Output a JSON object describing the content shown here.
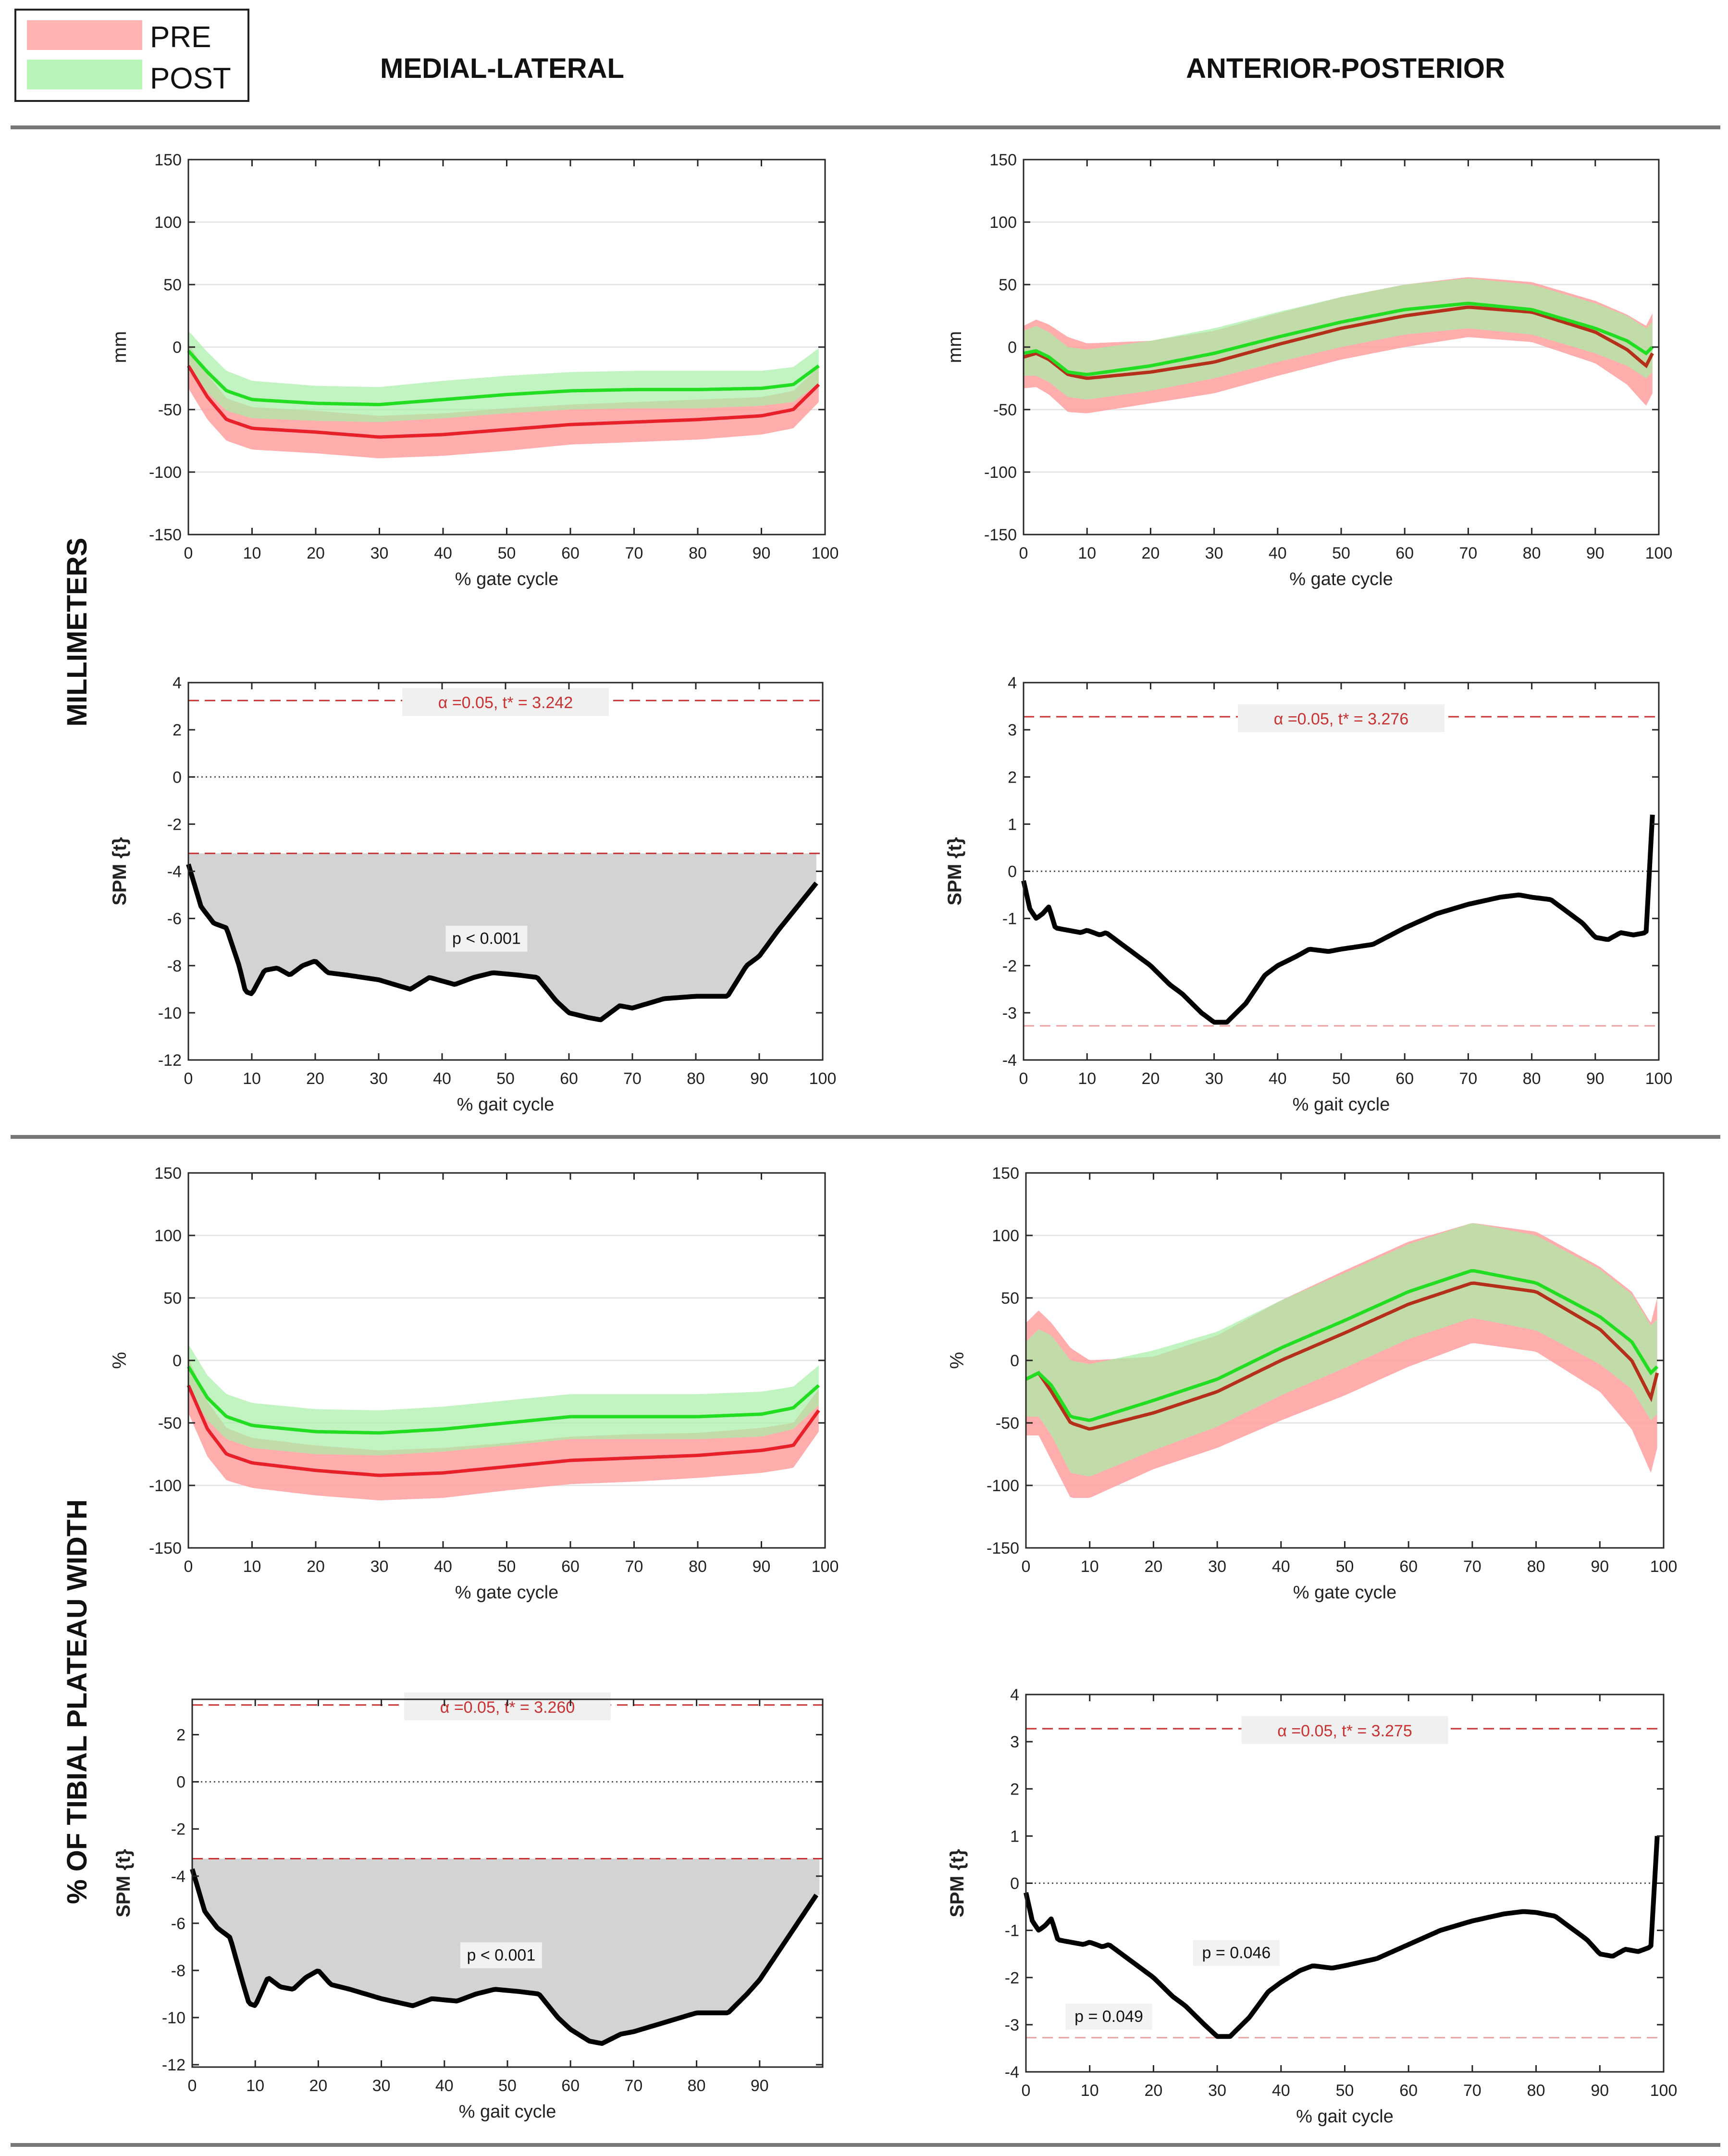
{
  "legend": {
    "entries": [
      {
        "label": "PRE",
        "color": "#ffb3b3"
      },
      {
        "label": "POST",
        "color": "#b9f5b9"
      }
    ]
  },
  "column_headers": [
    "MEDIAL-LATERAL",
    "ANTERIOR-POSTERIOR"
  ],
  "row_headers": [
    "MILLIMETERS",
    "% OF TIBIAL PLATEAU WIDTH"
  ],
  "colors": {
    "pre_line": "#e8202a",
    "pre_line_ap": "#b5301b",
    "pre_band": "#ff9f9f",
    "post_line": "#22dd22",
    "post_band": "#a6f0a6",
    "overlap_band": "#a6b06a",
    "spm_line": "#000000",
    "threshold": "#c83232",
    "cluster": "#d3d3d3"
  },
  "chart_data": [
    {
      "id": "ml-mm",
      "type": "line",
      "xlabel": "% gate cycle",
      "ylabel": "mm",
      "xlim": [
        0,
        100
      ],
      "ylim": [
        -150,
        150
      ],
      "xticks": [
        "0",
        "10",
        "20",
        "30",
        "40",
        "50",
        "60",
        "70",
        "80",
        "90",
        "100"
      ],
      "yticks": [
        "150",
        "100",
        "50",
        "0",
        "-50",
        "-100",
        "-150"
      ],
      "x": [
        0,
        3,
        6,
        10,
        20,
        30,
        40,
        50,
        60,
        70,
        80,
        90,
        95,
        99
      ],
      "series": [
        {
          "name": "PRE",
          "mean": [
            -15,
            -40,
            -58,
            -65,
            -68,
            -72,
            -70,
            -66,
            -62,
            -60,
            -58,
            -55,
            -50,
            -30
          ],
          "sd": [
            18,
            18,
            17,
            17,
            17,
            17,
            17,
            17,
            16,
            16,
            16,
            15,
            15,
            14
          ]
        },
        {
          "name": "POST",
          "mean": [
            -3,
            -20,
            -35,
            -42,
            -45,
            -46,
            -42,
            -38,
            -35,
            -34,
            -34,
            -33,
            -30,
            -15
          ],
          "sd": [
            16,
            16,
            16,
            15,
            14,
            14,
            15,
            15,
            15,
            15,
            15,
            14,
            14,
            14
          ]
        }
      ]
    },
    {
      "id": "ap-mm",
      "type": "line",
      "xlabel": "% gate cycle",
      "ylabel": "mm",
      "xlim": [
        0,
        100
      ],
      "ylim": [
        -150,
        150
      ],
      "xticks": [
        "0",
        "10",
        "20",
        "30",
        "40",
        "50",
        "60",
        "70",
        "80",
        "90",
        "100"
      ],
      "yticks": [
        "150",
        "100",
        "50",
        "0",
        "-50",
        "-100",
        "-150"
      ],
      "x": [
        0,
        2,
        4,
        7,
        10,
        20,
        30,
        40,
        50,
        60,
        70,
        80,
        90,
        95,
        98,
        99
      ],
      "series": [
        {
          "name": "PRE",
          "mean": [
            -8,
            -5,
            -10,
            -22,
            -25,
            -20,
            -12,
            2,
            15,
            25,
            32,
            28,
            12,
            -2,
            -15,
            -5
          ],
          "sd": [
            25,
            27,
            28,
            30,
            28,
            25,
            25,
            25,
            25,
            25,
            24,
            24,
            25,
            28,
            32,
            32
          ]
        },
        {
          "name": "POST",
          "mean": [
            -5,
            -3,
            -8,
            -20,
            -22,
            -15,
            -5,
            8,
            20,
            30,
            35,
            30,
            15,
            5,
            -5,
            0
          ],
          "sd": [
            18,
            20,
            20,
            20,
            20,
            20,
            20,
            20,
            20,
            20,
            20,
            20,
            20,
            20,
            20,
            20
          ]
        }
      ]
    },
    {
      "id": "ml-mm-spm",
      "type": "line",
      "xlabel": "% gait cycle",
      "ylabel": "SPM {t}",
      "xlim": [
        0,
        100
      ],
      "ylim": [
        -12,
        4
      ],
      "xticks": [
        "0",
        "10",
        "20",
        "30",
        "40",
        "50",
        "60",
        "70",
        "80",
        "90",
        "100"
      ],
      "yticks": [
        "4",
        "2",
        "0",
        "-2",
        "-4",
        "-6",
        "-8",
        "-10",
        "-12"
      ],
      "threshold": 3.242,
      "threshold_label": "α =0.05,     t* = 3.242",
      "clusters": [
        {
          "range": [
            0,
            99
          ],
          "side": "lower",
          "label": "p < 0.001",
          "label_at": [
            47,
            -7
          ]
        }
      ],
      "x": [
        0,
        2,
        4,
        6,
        8,
        9,
        10,
        12,
        14,
        16,
        18,
        20,
        22,
        25,
        30,
        35,
        38,
        42,
        45,
        48,
        52,
        55,
        58,
        60,
        63,
        65,
        68,
        70,
        75,
        80,
        85,
        88,
        90,
        93,
        96,
        99
      ],
      "values": [
        -3.7,
        -5.5,
        -6.2,
        -6.4,
        -8.0,
        -9.1,
        -9.2,
        -8.2,
        -8.1,
        -8.4,
        -8.0,
        -7.8,
        -8.3,
        -8.4,
        -8.6,
        -9.0,
        -8.5,
        -8.8,
        -8.5,
        -8.3,
        -8.4,
        -8.5,
        -9.5,
        -10.0,
        -10.2,
        -10.3,
        -9.7,
        -9.8,
        -9.4,
        -9.3,
        -9.3,
        -8.0,
        -7.6,
        -6.5,
        -5.5,
        -4.5
      ]
    },
    {
      "id": "ap-mm-spm",
      "type": "line",
      "xlabel": "% gait cycle",
      "ylabel": "SPM {t}",
      "xlim": [
        0,
        100
      ],
      "ylim": [
        -4,
        4
      ],
      "xticks": [
        "0",
        "10",
        "20",
        "30",
        "40",
        "50",
        "60",
        "70",
        "80",
        "90",
        "100"
      ],
      "yticks": [
        "4",
        "3",
        "2",
        "1",
        "0",
        "-1",
        "-2",
        "-3",
        "-4"
      ],
      "threshold": 3.276,
      "threshold_label": "α =0.05,     t* = 3.276",
      "clusters": [],
      "x": [
        0,
        1,
        2,
        3,
        4,
        5,
        7,
        9,
        10,
        12,
        13,
        15,
        18,
        20,
        23,
        25,
        28,
        30,
        32,
        35,
        38,
        40,
        43,
        45,
        48,
        50,
        55,
        60,
        65,
        70,
        75,
        78,
        80,
        83,
        85,
        88,
        90,
        92,
        94,
        96,
        98,
        99
      ],
      "values": [
        -0.2,
        -0.8,
        -1.0,
        -0.9,
        -0.75,
        -1.2,
        -1.25,
        -1.3,
        -1.25,
        -1.35,
        -1.3,
        -1.5,
        -1.8,
        -2.0,
        -2.4,
        -2.6,
        -3.0,
        -3.2,
        -3.2,
        -2.8,
        -2.2,
        -2.0,
        -1.8,
        -1.65,
        -1.7,
        -1.65,
        -1.55,
        -1.2,
        -0.9,
        -0.7,
        -0.55,
        -0.5,
        -0.55,
        -0.6,
        -0.8,
        -1.1,
        -1.4,
        -1.45,
        -1.3,
        -1.35,
        -1.3,
        1.2
      ]
    },
    {
      "id": "ml-pct",
      "type": "line",
      "xlabel": "% gate cycle",
      "ylabel": "%",
      "xlim": [
        0,
        100
      ],
      "ylim": [
        -150,
        150
      ],
      "xticks": [
        "0",
        "10",
        "20",
        "30",
        "40",
        "50",
        "60",
        "70",
        "80",
        "90",
        "100"
      ],
      "yticks": [
        "150",
        "100",
        "50",
        "0",
        "-50",
        "-100",
        "-150"
      ],
      "x": [
        0,
        3,
        6,
        10,
        20,
        30,
        40,
        50,
        60,
        70,
        80,
        90,
        95,
        99
      ],
      "series": [
        {
          "name": "PRE",
          "mean": [
            -20,
            -55,
            -75,
            -82,
            -88,
            -92,
            -90,
            -85,
            -80,
            -78,
            -76,
            -72,
            -68,
            -40
          ],
          "sd": [
            22,
            22,
            21,
            20,
            20,
            20,
            20,
            19,
            19,
            19,
            18,
            18,
            18,
            17
          ]
        },
        {
          "name": "POST",
          "mean": [
            -5,
            -30,
            -45,
            -52,
            -57,
            -58,
            -55,
            -50,
            -45,
            -45,
            -45,
            -43,
            -38,
            -20
          ],
          "sd": [
            18,
            18,
            18,
            18,
            18,
            18,
            18,
            18,
            18,
            18,
            18,
            18,
            17,
            16
          ]
        }
      ]
    },
    {
      "id": "ap-pct",
      "type": "line",
      "xlabel": "% gate cycle",
      "ylabel": "%",
      "xlim": [
        0,
        100
      ],
      "ylim": [
        -150,
        150
      ],
      "xticks": [
        "0",
        "10",
        "20",
        "30",
        "40",
        "50",
        "60",
        "70",
        "80",
        "90",
        "100"
      ],
      "yticks": [
        "150",
        "100",
        "50",
        "0",
        "-50",
        "-100",
        "-150"
      ],
      "x": [
        0,
        2,
        4,
        7,
        10,
        20,
        30,
        40,
        50,
        60,
        70,
        80,
        90,
        95,
        98,
        99
      ],
      "series": [
        {
          "name": "PRE",
          "mean": [
            -15,
            -10,
            -25,
            -50,
            -55,
            -42,
            -25,
            0,
            22,
            45,
            62,
            55,
            25,
            0,
            -30,
            -10
          ],
          "sd": [
            45,
            50,
            55,
            60,
            55,
            45,
            45,
            48,
            50,
            50,
            48,
            48,
            50,
            55,
            60,
            60
          ]
        },
        {
          "name": "POST",
          "mean": [
            -15,
            -10,
            -20,
            -45,
            -48,
            -32,
            -15,
            10,
            32,
            55,
            72,
            62,
            35,
            15,
            -10,
            -5
          ],
          "sd": [
            30,
            35,
            40,
            45,
            45,
            40,
            38,
            38,
            38,
            38,
            38,
            38,
            38,
            38,
            38,
            38
          ]
        }
      ]
    },
    {
      "id": "ml-pct-spm",
      "type": "line",
      "xlabel": "% gait cycle",
      "ylabel": "SPM {t}",
      "xlim": [
        0,
        100
      ],
      "ylim": [
        -12.1,
        3.5
      ],
      "xticks": [
        "0",
        "10",
        "20",
        "30",
        "40",
        "50",
        "60",
        "70",
        "80",
        "90"
      ],
      "yticks": [
        "2",
        "0",
        "-2",
        "-4",
        "-6",
        "-8",
        "-10",
        "-12"
      ],
      "threshold": 3.26,
      "threshold_label": "α =0.05,     t* = 3.260",
      "clusters": [
        {
          "range": [
            0,
            99.5
          ],
          "side": "lower",
          "label": "p < 0.001",
          "label_at": [
            49,
            -7.5
          ]
        }
      ],
      "x": [
        0,
        2,
        4,
        6,
        8,
        9,
        10,
        12,
        14,
        16,
        18,
        20,
        22,
        25,
        30,
        35,
        38,
        42,
        45,
        48,
        52,
        55,
        58,
        60,
        63,
        65,
        68,
        70,
        75,
        80,
        85,
        88,
        90,
        93,
        96,
        99
      ],
      "values": [
        -3.7,
        -5.5,
        -6.2,
        -6.6,
        -8.5,
        -9.4,
        -9.5,
        -8.3,
        -8.7,
        -8.8,
        -8.3,
        -8.0,
        -8.6,
        -8.8,
        -9.2,
        -9.5,
        -9.2,
        -9.3,
        -9.0,
        -8.8,
        -8.9,
        -9.0,
        -10.0,
        -10.5,
        -11.0,
        -11.1,
        -10.7,
        -10.6,
        -10.2,
        -9.8,
        -9.8,
        -9.0,
        -8.4,
        -7.2,
        -6.0,
        -4.8
      ]
    },
    {
      "id": "ap-pct-spm",
      "type": "line",
      "xlabel": "% gait cycle",
      "ylabel": "SPM {t}",
      "xlim": [
        0,
        100
      ],
      "ylim": [
        -4,
        4
      ],
      "xticks": [
        "0",
        "10",
        "20",
        "30",
        "40",
        "50",
        "60",
        "70",
        "80",
        "90",
        "100"
      ],
      "yticks": [
        "4",
        "3",
        "2",
        "1",
        "0",
        "-1",
        "-2",
        "-3",
        "-4"
      ],
      "threshold": 3.275,
      "threshold_label": "α =0.05,     t* = 3.275",
      "clusters": [],
      "annotations": [
        {
          "text": "p = 0.046",
          "at": [
            33,
            -1.55
          ]
        },
        {
          "text": "p = 0.049",
          "at": [
            13,
            -2.9
          ]
        }
      ],
      "x": [
        0,
        1,
        2,
        3,
        4,
        5,
        7,
        9,
        10,
        12,
        13,
        15,
        18,
        20,
        23,
        25,
        28,
        30,
        32,
        35,
        38,
        40,
        43,
        45,
        48,
        50,
        55,
        60,
        65,
        70,
        75,
        78,
        80,
        83,
        85,
        88,
        90,
        92,
        94,
        96,
        98,
        99
      ],
      "values": [
        -0.2,
        -0.8,
        -1.0,
        -0.9,
        -0.75,
        -1.2,
        -1.25,
        -1.3,
        -1.25,
        -1.35,
        -1.3,
        -1.5,
        -1.8,
        -2.0,
        -2.4,
        -2.6,
        -3.0,
        -3.25,
        -3.25,
        -2.85,
        -2.3,
        -2.1,
        -1.85,
        -1.75,
        -1.8,
        -1.75,
        -1.6,
        -1.3,
        -1.0,
        -0.8,
        -0.65,
        -0.6,
        -0.62,
        -0.7,
        -0.9,
        -1.2,
        -1.5,
        -1.55,
        -1.4,
        -1.45,
        -1.35,
        1.0
      ]
    }
  ]
}
